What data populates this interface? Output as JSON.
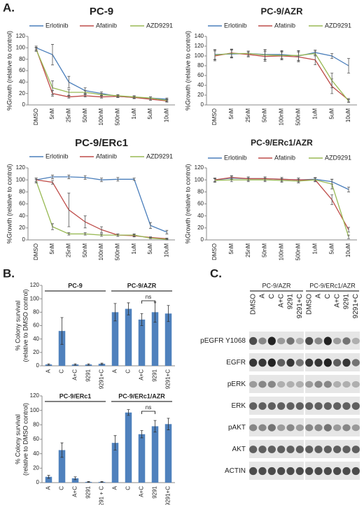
{
  "panel_labels": [
    "A.",
    "B.",
    "C."
  ],
  "chart_data": [
    {
      "type": "line",
      "title": "PC-9",
      "ylabel": "%Growth (relative to control)",
      "categories": [
        "DMSO",
        "5nM",
        "25nM",
        "50nM",
        "100nM",
        "500nM",
        "1uM",
        "5uM",
        "10uM"
      ],
      "ylim": [
        0,
        120
      ],
      "yticks": [
        0,
        20,
        40,
        60,
        80,
        100,
        120
      ],
      "series": [
        {
          "name": "Erlotinib",
          "color": "#4a7ebb",
          "values": [
            100,
            88,
            40,
            25,
            20,
            15,
            13,
            12,
            10
          ],
          "errors": [
            3,
            18,
            10,
            5,
            3,
            2,
            2,
            2,
            2
          ]
        },
        {
          "name": "Afatinib",
          "color": "#be4b48",
          "values": [
            98,
            20,
            14,
            16,
            14,
            15,
            13,
            10,
            7
          ],
          "errors": [
            3,
            5,
            2,
            2,
            2,
            2,
            2,
            2,
            2
          ]
        },
        {
          "name": "AZD9291",
          "color": "#98b954",
          "values": [
            97,
            30,
            22,
            22,
            18,
            16,
            14,
            12,
            8
          ],
          "errors": [
            3,
            12,
            5,
            3,
            2,
            2,
            2,
            2,
            2
          ]
        }
      ]
    },
    {
      "type": "line",
      "title": "PC-9/AZR",
      "ylabel": "%Growth (relative to control)",
      "categories": [
        "DMSO",
        "5nM",
        "25nM",
        "50nM",
        "100nM",
        "500nM",
        "1uM",
        "5uM",
        "10uM"
      ],
      "ylim": [
        0,
        140
      ],
      "yticks": [
        0,
        20,
        40,
        60,
        80,
        100,
        120,
        140
      ],
      "series": [
        {
          "name": "Erlotinib",
          "color": "#4a7ebb",
          "values": [
            103,
            104,
            105,
            103,
            103,
            100,
            107,
            100,
            80
          ],
          "errors": [
            10,
            8,
            5,
            10,
            8,
            10,
            5,
            5,
            15
          ]
        },
        {
          "name": "Afatinib",
          "color": "#be4b48",
          "values": [
            100,
            106,
            103,
            99,
            100,
            98,
            92,
            38,
            10
          ],
          "errors": [
            10,
            8,
            5,
            10,
            8,
            10,
            10,
            15,
            3
          ]
        },
        {
          "name": "AZD9291",
          "color": "#98b954",
          "values": [
            102,
            105,
            105,
            102,
            101,
            101,
            105,
            50,
            8
          ],
          "errors": [
            10,
            8,
            5,
            10,
            8,
            10,
            5,
            15,
            3
          ]
        }
      ]
    },
    {
      "type": "line",
      "title": "PC-9/ERc1",
      "ylabel": "%Growth (relative to control)",
      "categories": [
        "DMSO",
        "5nM",
        "25nM",
        "50nM",
        "100nM",
        "500nM",
        "1uM",
        "5uM",
        "10uM"
      ],
      "ylim": [
        0,
        120
      ],
      "yticks": [
        0,
        20,
        40,
        60,
        80,
        100,
        120
      ],
      "series": [
        {
          "name": "Erlotinib",
          "color": "#4a7ebb",
          "values": [
            100,
            105,
            105,
            104,
            100,
            101,
            101,
            24,
            13
          ],
          "errors": [
            3,
            3,
            3,
            3,
            3,
            3,
            2,
            5,
            3
          ]
        },
        {
          "name": "Afatinib",
          "color": "#be4b48",
          "values": [
            100,
            96,
            50,
            30,
            17,
            8,
            7,
            4,
            2
          ],
          "errors": [
            3,
            3,
            28,
            10,
            5,
            2,
            2,
            1,
            1
          ]
        },
        {
          "name": "AZD9291",
          "color": "#98b954",
          "values": [
            98,
            22,
            10,
            10,
            8,
            8,
            8,
            3,
            1
          ],
          "errors": [
            3,
            5,
            2,
            2,
            2,
            2,
            2,
            1,
            1
          ]
        }
      ]
    },
    {
      "type": "line",
      "title": "PC-9/ERc1/AZR",
      "ylabel": "%Growth (relative to control)",
      "categories": [
        "DMSO",
        "5nM",
        "25nM",
        "50nM",
        "100nM",
        "500nM",
        "1uM",
        "5uM",
        "10uM"
      ],
      "ylim": [
        0,
        120
      ],
      "yticks": [
        0,
        20,
        40,
        60,
        80,
        100,
        120
      ],
      "series": [
        {
          "name": "Erlotinib",
          "color": "#4a7ebb",
          "values": [
            100,
            103,
            102,
            102,
            101,
            100,
            101,
            97,
            84
          ],
          "errors": [
            3,
            3,
            3,
            3,
            3,
            3,
            3,
            4,
            4
          ]
        },
        {
          "name": "Afatinib",
          "color": "#be4b48",
          "values": [
            100,
            104,
            102,
            102,
            101,
            100,
            100,
            67,
            17
          ],
          "errors": [
            3,
            3,
            3,
            3,
            3,
            3,
            3,
            8,
            4
          ]
        },
        {
          "name": "AZD9291",
          "color": "#98b954",
          "values": [
            99,
            100,
            100,
            100,
            99,
            98,
            100,
            93,
            5
          ],
          "errors": [
            3,
            3,
            3,
            3,
            3,
            3,
            3,
            8,
            3
          ]
        }
      ]
    },
    {
      "type": "bar",
      "ylabel": [
        "% Colony survival",
        "(relative to DMSO control)"
      ],
      "groups": [
        "PC-9",
        "PC-9/AZR"
      ],
      "annotation": "ns",
      "categories": [
        "A",
        "C",
        "A+C",
        "9291",
        "9291+C",
        "A",
        "C",
        "A+C",
        "9291",
        "9291+C"
      ],
      "values": [
        2,
        52,
        2,
        2,
        3,
        80,
        85,
        69,
        80,
        78
      ],
      "errors": [
        1,
        20,
        1,
        1,
        1,
        13,
        9,
        9,
        15,
        12
      ],
      "color": "#4f81bd",
      "ylim": [
        0,
        120
      ],
      "yticks": [
        0,
        20,
        40,
        60,
        80,
        100,
        120
      ]
    },
    {
      "type": "bar",
      "ylabel": [
        "% Colony survival",
        "(relative to DMSO control)"
      ],
      "groups": [
        "PC-9/ERc1",
        "PC-9/ERc1/AZR"
      ],
      "annotation": "ns",
      "categories": [
        "A",
        "C",
        "A+C",
        "9291",
        "9291 + C",
        "A",
        "C",
        "A+C",
        "9291",
        "9291+C"
      ],
      "values": [
        8,
        45,
        6,
        1,
        1,
        55,
        97,
        67,
        78,
        81
      ],
      "errors": [
        2,
        10,
        2,
        0.5,
        0.5,
        10,
        4,
        5,
        8,
        8
      ],
      "color": "#4f81bd",
      "ylim": [
        0,
        120
      ],
      "yticks": [
        0,
        20,
        40,
        60,
        80,
        100,
        120
      ]
    }
  ],
  "blot": {
    "groups": [
      "PC-9/AZR",
      "PC-9/ERc1/AZR"
    ],
    "lanes": [
      "DMSO",
      "A",
      "C",
      "A+C",
      "9291",
      "9291+C",
      "DMSO",
      "A",
      "C",
      "A+C",
      "9291",
      "9291+C"
    ],
    "rows": [
      "pEGFR Y1068",
      "EGFR",
      "pERK",
      "ERK",
      "pAKT",
      "AKT",
      "ACTIN"
    ]
  }
}
